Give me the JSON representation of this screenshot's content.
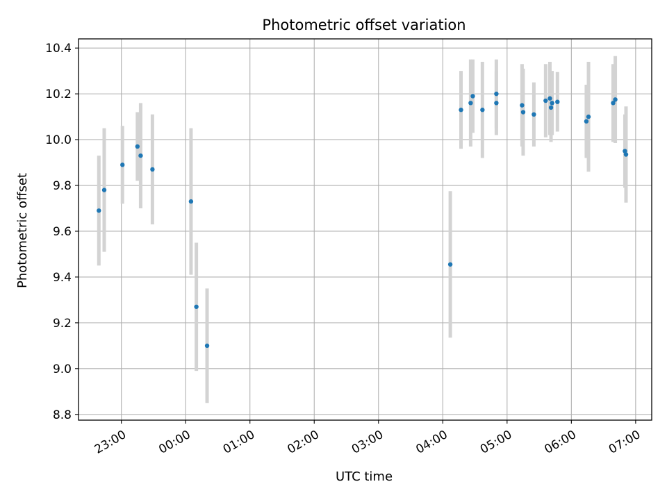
{
  "chart_data": {
    "type": "scatter",
    "title": "Photometric offset variation",
    "xlabel": "UTC time",
    "ylabel": "Photometric offset",
    "xlim": [
      "22:20",
      "07:15"
    ],
    "ylim": [
      8.775,
      10.44
    ],
    "grid": true,
    "x_ticks": [
      "23:00",
      "00:00",
      "01:00",
      "02:00",
      "03:00",
      "04:00",
      "05:00",
      "06:00",
      "07:00"
    ],
    "y_ticks": [
      "8.8",
      "9.0",
      "9.2",
      "9.4",
      "9.6",
      "9.8",
      "10.0",
      "10.2",
      "10.4"
    ],
    "point_color": "#1f77b4",
    "errorbar_color": "#d3d3d3",
    "series": [
      {
        "points": [
          {
            "x": "22:39",
            "y": 9.69,
            "err": 0.24
          },
          {
            "x": "22:44",
            "y": 9.78,
            "err": 0.27
          },
          {
            "x": "23:01",
            "y": 9.89,
            "err": 0.17
          },
          {
            "x": "23:15",
            "y": 9.97,
            "err": 0.15
          },
          {
            "x": "23:18",
            "y": 9.93,
            "err": 0.23
          },
          {
            "x": "23:29",
            "y": 9.87,
            "err": 0.24
          },
          {
            "x": "00:05",
            "y": 9.73,
            "err": 0.32
          },
          {
            "x": "00:10",
            "y": 9.27,
            "err": 0.28
          },
          {
            "x": "00:20",
            "y": 9.1,
            "err": 0.25
          },
          {
            "x": "04:07",
            "y": 9.455,
            "err": 0.32
          },
          {
            "x": "04:17",
            "y": 10.13,
            "err": 0.17
          },
          {
            "x": "04:26",
            "y": 10.16,
            "err": 0.19
          },
          {
            "x": "04:28",
            "y": 10.19,
            "err": 0.16
          },
          {
            "x": "04:37",
            "y": 10.13,
            "err": 0.21
          },
          {
            "x": "04:50",
            "y": 10.16,
            "err": 0.14
          },
          {
            "x": "04:50",
            "y": 10.2,
            "err": 0.15
          },
          {
            "x": "05:14",
            "y": 10.15,
            "err": 0.18
          },
          {
            "x": "05:15",
            "y": 10.12,
            "err": 0.19
          },
          {
            "x": "05:25",
            "y": 10.11,
            "err": 0.14
          },
          {
            "x": "05:36",
            "y": 10.17,
            "err": 0.16
          },
          {
            "x": "05:40",
            "y": 10.18,
            "err": 0.16
          },
          {
            "x": "05:41",
            "y": 10.14,
            "err": 0.15
          },
          {
            "x": "05:42",
            "y": 10.16,
            "err": 0.14
          },
          {
            "x": "05:47",
            "y": 10.165,
            "err": 0.13
          },
          {
            "x": "06:14",
            "y": 10.08,
            "err": 0.16
          },
          {
            "x": "06:16",
            "y": 10.1,
            "err": 0.24
          },
          {
            "x": "06:39",
            "y": 10.16,
            "err": 0.17
          },
          {
            "x": "06:41",
            "y": 10.175,
            "err": 0.19
          },
          {
            "x": "06:50",
            "y": 9.95,
            "err": 0.16
          },
          {
            "x": "06:51",
            "y": 9.935,
            "err": 0.21
          }
        ]
      }
    ]
  }
}
